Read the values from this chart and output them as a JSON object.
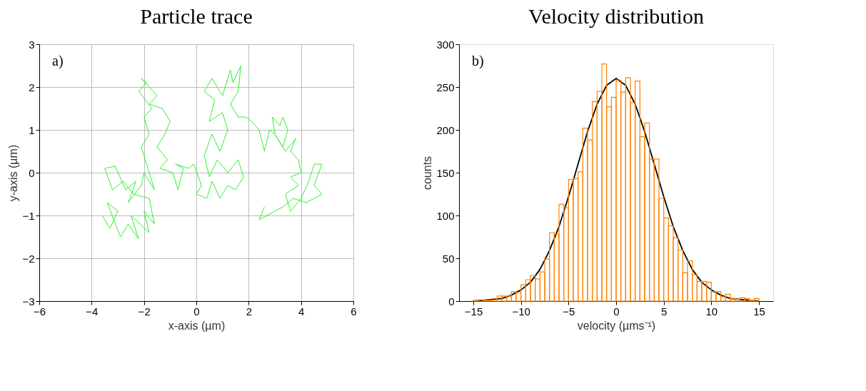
{
  "chart_data": [
    {
      "type": "line",
      "title": "Particle trace",
      "xlabel": "x-axis (µm)",
      "ylabel": "y-axis (µm)",
      "annotations": [
        "a)"
      ],
      "xlim": [
        -6,
        6
      ],
      "xticks": [
        -6,
        -4,
        -2,
        0,
        2,
        4,
        6
      ],
      "ylim": [
        -3,
        3
      ],
      "yticks": [
        -3,
        -2,
        -1,
        0,
        1,
        2,
        3
      ],
      "grid": true,
      "marker": "none",
      "line_style": "solid",
      "series": [
        {
          "color": "#33ee33",
          "x": [
            -3.6,
            -3.3,
            -3.0,
            -3.4,
            -2.9,
            -2.6,
            -2.2,
            -2.5,
            -1.8,
            -2.0,
            -1.6,
            -1.8,
            -2.4,
            -2.8,
            -3.2,
            -3.5,
            -3.1,
            -2.7,
            -2.3,
            -2.6,
            -2.1,
            -2.0,
            -1.6,
            -1.9,
            -2.1,
            -1.8,
            -2.0,
            -1.7,
            -2.2,
            -1.9,
            -2.1,
            -1.5,
            -1.8,
            -1.3,
            -1.0,
            -1.2,
            -1.5,
            -1.1,
            -1.4,
            -0.9,
            -0.7,
            -0.5,
            -0.8,
            -0.3,
            -0.1,
            0.2,
            0.0,
            0.4,
            0.6,
            0.9,
            1.2,
            1.5,
            1.8,
            1.6,
            1.2,
            0.8,
            0.5,
            0.3,
            0.6,
            0.9,
            1.2,
            1.0,
            0.5,
            0.7,
            0.3,
            0.6,
            1.0,
            1.3,
            1.4,
            1.7,
            1.6,
            1.3,
            1.6,
            1.9,
            2.1,
            2.4,
            2.6,
            2.8,
            3.0,
            2.9,
            3.2,
            3.3,
            3.5,
            3.3,
            3.0,
            3.4,
            3.8,
            3.6,
            3.9,
            4.0,
            3.6,
            3.9,
            3.4,
            3.6,
            4.0,
            4.3,
            4.5,
            4.8,
            4.5,
            4.8,
            4.2,
            3.7,
            3.3,
            3.0,
            2.7,
            2.4,
            2.6
          ],
          "values": [
            -1.0,
            -1.3,
            -0.9,
            -0.7,
            -1.5,
            -1.2,
            -1.55,
            -1.0,
            -1.4,
            -0.9,
            -1.2,
            -0.6,
            -0.5,
            -0.2,
            -0.4,
            0.1,
            0.15,
            -0.4,
            -0.2,
            -0.7,
            -0.3,
            0.0,
            -0.4,
            0.2,
            0.6,
            0.9,
            1.3,
            1.5,
            1.9,
            2.1,
            2.2,
            1.8,
            1.6,
            1.5,
            1.2,
            0.9,
            0.6,
            0.3,
            0.1,
            0.0,
            -0.4,
            0.1,
            0.2,
            0.1,
            0.2,
            -0.3,
            -0.5,
            -0.6,
            -0.2,
            -0.6,
            -0.3,
            -0.4,
            -0.1,
            0.3,
            0.0,
            0.3,
            -0.1,
            0.4,
            0.9,
            0.5,
            1.0,
            1.4,
            1.2,
            1.7,
            1.9,
            2.2,
            1.8,
            2.4,
            2.1,
            2.5,
            1.9,
            1.6,
            1.3,
            1.3,
            1.2,
            1.0,
            0.5,
            1.0,
            0.9,
            1.3,
            1.1,
            1.3,
            1.0,
            0.6,
            0.9,
            0.5,
            0.8,
            0.5,
            0.3,
            0.0,
            -0.1,
            -0.3,
            -0.5,
            -0.9,
            -0.6,
            -0.2,
            0.2,
            0.2,
            -0.3,
            -0.5,
            -0.7,
            -0.6,
            -0.8,
            -0.9,
            -1.0,
            -1.1,
            -0.8
          ]
        }
      ]
    },
    {
      "type": "histogram",
      "title": "Velocity distribution",
      "xlabel": "velocity (µms⁻¹)",
      "ylabel": "counts",
      "annotations": [
        "b)"
      ],
      "xlim": [
        -16.5,
        16.5
      ],
      "xticks": [
        -15,
        -10,
        -5,
        0,
        5,
        10,
        15
      ],
      "ylim": [
        0,
        300
      ],
      "yticks": [
        0,
        50,
        100,
        150,
        200,
        250,
        300
      ],
      "grid": false,
      "color": "#ff8000",
      "bins": [
        -15,
        -14.5,
        -14,
        -13.5,
        -13,
        -12.5,
        -12,
        -11.5,
        -11,
        -10.5,
        -10,
        -9.5,
        -9,
        -8.5,
        -8,
        -7.5,
        -7,
        -6.5,
        -6,
        -5.5,
        -5,
        -4.5,
        -4,
        -3.5,
        -3,
        -2.5,
        -2,
        -1.5,
        -1,
        -0.5,
        0,
        0.5,
        1,
        1.5,
        2,
        2.5,
        3,
        3.5,
        4,
        4.5,
        5,
        5.5,
        6,
        6.5,
        7,
        7.5,
        8,
        8.5,
        9,
        9.5,
        10,
        10.5,
        11,
        11.5,
        12,
        12.5,
        13,
        13.5,
        14,
        14.5,
        15
      ],
      "values": [
        1,
        0,
        1,
        1,
        3,
        6,
        6,
        6,
        11,
        10,
        19,
        25,
        30,
        26,
        34,
        49,
        80,
        78,
        113,
        109,
        142,
        143,
        151,
        202,
        188,
        233,
        245,
        277,
        227,
        238,
        258,
        244,
        261,
        232,
        257,
        192,
        208,
        166,
        166,
        120,
        97,
        88,
        74,
        60,
        33,
        47,
        31,
        23,
        23,
        22,
        11,
        11,
        5,
        8,
        3,
        2,
        4,
        3,
        1,
        3
      ],
      "series": [
        {
          "type": "line",
          "color": "#000000",
          "line_style": "solid",
          "x": [
            -15,
            -14,
            -13,
            -12,
            -11,
            -10,
            -9,
            -8,
            -7,
            -6,
            -5,
            -4,
            -3,
            -2,
            -1,
            0,
            1,
            2,
            3,
            4,
            5,
            6,
            7,
            8,
            9,
            10,
            11,
            12,
            13,
            14,
            15
          ],
          "values": [
            0,
            1,
            2,
            3,
            7,
            13,
            22,
            37,
            59,
            87,
            122,
            160,
            198,
            230,
            252,
            260,
            252,
            230,
            198,
            160,
            122,
            87,
            59,
            37,
            22,
            13,
            7,
            3,
            2,
            1,
            0
          ]
        }
      ]
    }
  ]
}
